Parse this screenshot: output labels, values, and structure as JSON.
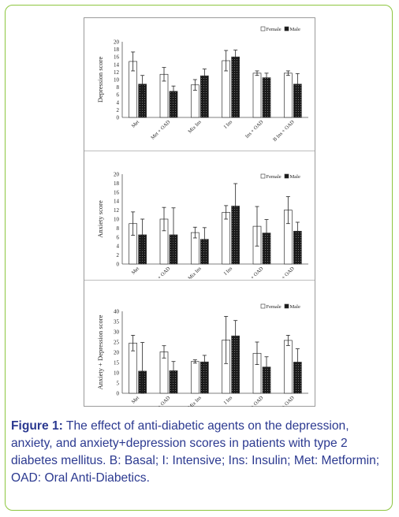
{
  "figure": {
    "caption_label": "Figure 1:",
    "caption_text": "The effect of anti-diabetic agents on the depression, anxiety, and anxiety+depression scores in patients with type 2 diabetes mellitus. B: Basal; I: Intensive; Ins: Insulin; Met: Metformin; OAD: Oral Anti-Diabetics."
  },
  "colors": {
    "female_fill": "#ffffff",
    "male_fill": "#1a1a1a",
    "border_accent": "#8dc63f",
    "caption_text": "#2b3990"
  },
  "chart_data": [
    {
      "type": "bar",
      "title": "",
      "xlabel": "",
      "ylabel": "Depression score",
      "ylim": [
        0,
        20
      ],
      "yticks": [
        0,
        2,
        4,
        6,
        8,
        10,
        12,
        14,
        16,
        18,
        20
      ],
      "grid": false,
      "legend": "top-right",
      "categories": [
        "Met",
        "Met + OAD",
        "Mix Ins",
        "I Ins",
        "Ins + OAD",
        "B Ins + OAD"
      ],
      "series": [
        {
          "name": "Female",
          "values": [
            14.8,
            11.4,
            8.6,
            15.0,
            11.7,
            11.7
          ],
          "errors": [
            2.5,
            1.8,
            1.4,
            2.7,
            0.6,
            0.6
          ]
        },
        {
          "name": "Male",
          "values": [
            8.8,
            6.9,
            11.0,
            16.0,
            10.5,
            8.8
          ],
          "errors": [
            2.3,
            1.4,
            1.8,
            1.8,
            1.2,
            2.8
          ]
        }
      ]
    },
    {
      "type": "bar",
      "title": "",
      "xlabel": "",
      "ylabel": "Anxiety score",
      "ylim": [
        0,
        20
      ],
      "yticks": [
        0,
        2,
        4,
        6,
        8,
        10,
        12,
        14,
        16,
        18,
        20
      ],
      "grid": false,
      "legend": "top-right",
      "categories": [
        "Met",
        "Met + OAD",
        "Mix Ins",
        "I Ins",
        "Ins + OAD",
        "B Ins + OAD"
      ],
      "series": [
        {
          "name": "Female",
          "values": [
            9.0,
            10.0,
            7.0,
            11.5,
            8.4,
            12.0
          ],
          "errors": [
            2.6,
            2.6,
            1.2,
            1.5,
            4.4,
            3.0
          ]
        },
        {
          "name": "Male",
          "values": [
            6.5,
            6.5,
            5.5,
            12.9,
            6.9,
            7.3
          ],
          "errors": [
            3.5,
            6.0,
            2.6,
            5.0,
            3.0,
            2.0
          ]
        }
      ]
    },
    {
      "type": "bar",
      "title": "",
      "xlabel": "",
      "ylabel": "Anxiety + Depression score",
      "ylim": [
        0,
        40
      ],
      "yticks": [
        0,
        5,
        10,
        15,
        20,
        25,
        30,
        35,
        40
      ],
      "grid": false,
      "legend": "top-right",
      "categories": [
        "Met",
        "Met + OAD",
        "Mix Ins",
        "I Ins",
        "Ins + OAD",
        "B Ins + OAD"
      ],
      "series": [
        {
          "name": "Female",
          "values": [
            24.5,
            20.2,
            15.5,
            26.0,
            19.5,
            25.8
          ],
          "errors": [
            3.8,
            3.0,
            0.8,
            11.5,
            5.5,
            2.5
          ]
        },
        {
          "name": "Male",
          "values": [
            10.8,
            11.0,
            15.3,
            28.0,
            12.8,
            15.2
          ],
          "errors": [
            14.0,
            4.5,
            3.2,
            7.5,
            5.0,
            6.5
          ]
        }
      ]
    }
  ]
}
